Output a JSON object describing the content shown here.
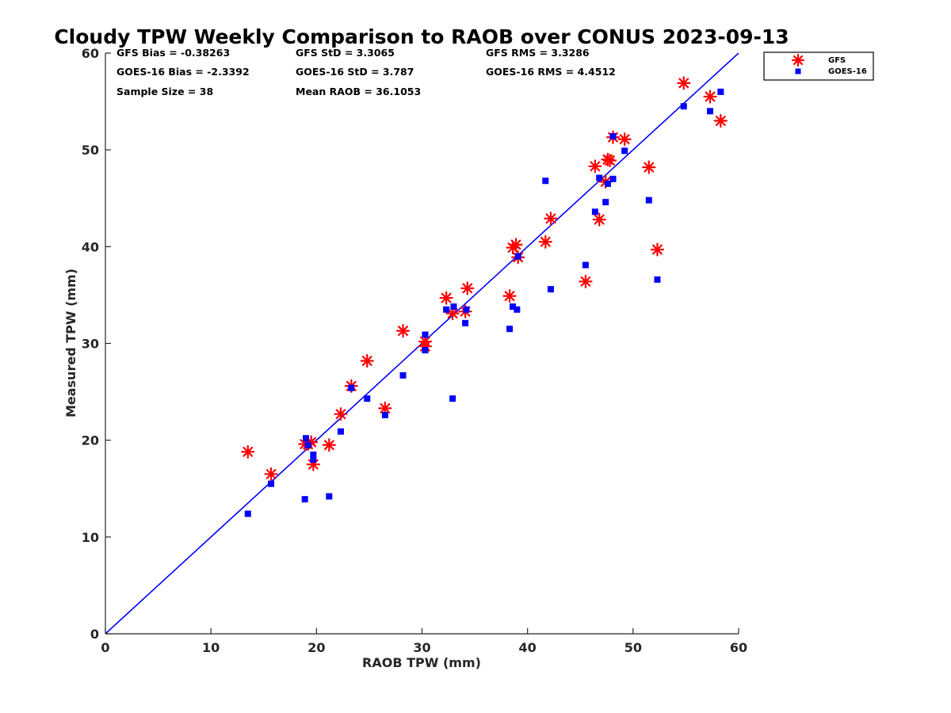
{
  "chart_data": {
    "type": "scatter",
    "title": "Cloudy TPW Weekly Comparison to RAOB over CONUS 2023-09-13",
    "xlabel": "RAOB TPW (mm)",
    "ylabel": "Measured TPW (mm)",
    "xlim": [
      0,
      60
    ],
    "ylim": [
      0,
      60
    ],
    "xticks": [
      "0",
      "10",
      "20",
      "30",
      "40",
      "50",
      "60"
    ],
    "yticks": [
      "0",
      "10",
      "20",
      "30",
      "40",
      "50",
      "60"
    ],
    "grid": false,
    "legend_position": "outside-top-right",
    "reference_line": {
      "from": [
        0,
        0
      ],
      "to": [
        60,
        60
      ],
      "color": "#0000ff"
    },
    "stats": {
      "gfs_bias": "GFS Bias = -0.38263",
      "gfs_std": "GFS StD = 3.3065",
      "gfs_rms": "GFS RMS = 3.3286",
      "goes_bias": "GOES-16 Bias = -2.3392",
      "goes_std": "GOES-16 StD = 3.787",
      "goes_rms": "GOES-16 RMS = 4.4512",
      "sample_size": "Sample Size = 38",
      "mean_raob": "Mean RAOB = 36.1053"
    },
    "series": [
      {
        "name": "GFS",
        "marker": "asterisk",
        "color": "#ff0000",
        "points": [
          [
            13.5,
            18.8
          ],
          [
            15.7,
            16.5
          ],
          [
            18.9,
            19.6
          ],
          [
            19.2,
            19.6
          ],
          [
            19.5,
            19.8
          ],
          [
            19.7,
            17.5
          ],
          [
            21.2,
            19.5
          ],
          [
            22.3,
            22.7
          ],
          [
            23.3,
            25.6
          ],
          [
            24.8,
            28.2
          ],
          [
            26.5,
            23.3
          ],
          [
            28.2,
            31.3
          ],
          [
            30.3,
            30.2
          ],
          [
            30.3,
            29.7
          ],
          [
            32.3,
            34.7
          ],
          [
            32.9,
            33.1
          ],
          [
            34.1,
            33.3
          ],
          [
            34.3,
            35.7
          ],
          [
            38.3,
            34.9
          ],
          [
            38.6,
            39.9
          ],
          [
            38.9,
            40.2
          ],
          [
            39.1,
            38.9
          ],
          [
            41.7,
            40.5
          ],
          [
            42.2,
            42.9
          ],
          [
            45.5,
            36.4
          ],
          [
            46.4,
            48.3
          ],
          [
            46.8,
            42.8
          ],
          [
            47.4,
            46.7
          ],
          [
            47.6,
            49.0
          ],
          [
            47.8,
            48.9
          ],
          [
            48.1,
            51.3
          ],
          [
            49.2,
            51.1
          ],
          [
            51.5,
            48.2
          ],
          [
            52.3,
            39.7
          ],
          [
            54.8,
            56.9
          ],
          [
            57.3,
            55.5
          ],
          [
            58.3,
            53.0
          ]
        ]
      },
      {
        "name": "GOES-16",
        "marker": "square",
        "color": "#0000ff",
        "points": [
          [
            13.5,
            12.4
          ],
          [
            15.7,
            15.5
          ],
          [
            18.9,
            13.9
          ],
          [
            19.0,
            20.2
          ],
          [
            19.2,
            19.5
          ],
          [
            19.7,
            18.5
          ],
          [
            19.7,
            18.0
          ],
          [
            21.2,
            14.2
          ],
          [
            22.3,
            20.9
          ],
          [
            23.3,
            25.4
          ],
          [
            24.8,
            24.3
          ],
          [
            26.5,
            22.6
          ],
          [
            28.2,
            26.7
          ],
          [
            30.3,
            30.9
          ],
          [
            30.3,
            29.3
          ],
          [
            32.3,
            33.5
          ],
          [
            32.9,
            24.3
          ],
          [
            33.0,
            33.8
          ],
          [
            34.1,
            32.1
          ],
          [
            34.2,
            33.5
          ],
          [
            38.3,
            31.5
          ],
          [
            38.6,
            33.8
          ],
          [
            39.0,
            33.5
          ],
          [
            39.1,
            39.0
          ],
          [
            41.7,
            46.8
          ],
          [
            42.2,
            35.6
          ],
          [
            45.5,
            38.1
          ],
          [
            46.4,
            43.6
          ],
          [
            46.8,
            47.1
          ],
          [
            47.4,
            44.6
          ],
          [
            47.6,
            46.5
          ],
          [
            48.1,
            51.4
          ],
          [
            48.1,
            47.0
          ],
          [
            49.2,
            49.9
          ],
          [
            51.5,
            44.8
          ],
          [
            52.3,
            36.6
          ],
          [
            54.8,
            54.5
          ],
          [
            57.3,
            54.0
          ],
          [
            58.3,
            56.0
          ]
        ]
      }
    ]
  }
}
